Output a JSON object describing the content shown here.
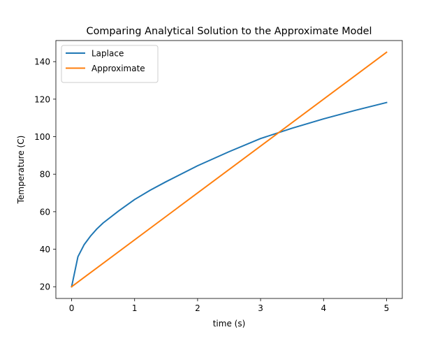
{
  "chart_data": {
    "type": "line",
    "title": "Comparing Analytical Solution to the Approximate Model",
    "xlabel": "time (s)",
    "ylabel": "Temperature (C)",
    "xlim": [
      -0.25,
      5.25
    ],
    "ylim": [
      13.75,
      151.25
    ],
    "x_ticks": [
      0,
      1,
      2,
      3,
      4,
      5
    ],
    "y_ticks": [
      20,
      40,
      60,
      80,
      100,
      120,
      140
    ],
    "grid": false,
    "legend_position": "upper-left",
    "series": [
      {
        "name": "Laplace",
        "color": "#1f77b4",
        "x": [
          0,
          0.1,
          0.2,
          0.3,
          0.4,
          0.5,
          0.75,
          1,
          1.25,
          1.5,
          2,
          2.5,
          3,
          3.5,
          4,
          4.5,
          5
        ],
        "y": [
          20,
          36,
          42.5,
          47,
          50.8,
          54,
          60.5,
          66.5,
          71.5,
          76,
          84.5,
          92,
          99,
          104.5,
          109.5,
          114,
          118.2
        ]
      },
      {
        "name": "Approximate",
        "color": "#ff7f0e",
        "x": [
          0,
          5
        ],
        "y": [
          20,
          145
        ]
      }
    ]
  }
}
